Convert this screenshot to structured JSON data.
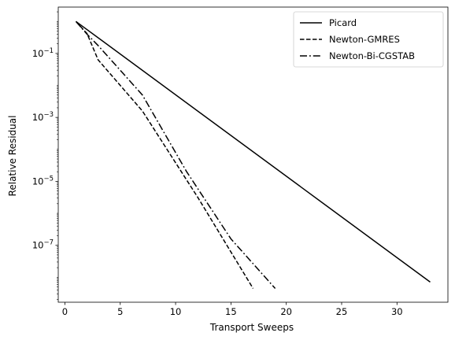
{
  "chart_data": {
    "type": "line",
    "title": "",
    "xlabel": "Transport Sweeps",
    "ylabel": "Relative Residual",
    "xlim": [
      -0.6,
      34.6
    ],
    "ylim_log10": [
      -8.78,
      0.45
    ],
    "y_scale": "log",
    "grid": false,
    "legend_position": "top-right",
    "x_ticks": [
      0,
      5,
      10,
      15,
      20,
      25,
      30
    ],
    "y_ticks": [
      {
        "exp": -1,
        "base": "10",
        "sup": "−1"
      },
      {
        "exp": -3,
        "base": "10",
        "sup": "−3"
      },
      {
        "exp": -5,
        "base": "10",
        "sup": "−5"
      },
      {
        "exp": -7,
        "base": "10",
        "sup": "−7"
      }
    ],
    "series": [
      {
        "name": "Picard",
        "style": "solid",
        "color": "#000000",
        "x": [
          1,
          33
        ],
        "log10_y": [
          0.0,
          -8.15
        ]
      },
      {
        "name": "Newton-GMRES",
        "style": "dashed",
        "color": "#000000",
        "x": [
          1,
          2,
          3,
          7,
          12,
          17
        ],
        "log10_y": [
          0.0,
          -0.38,
          -1.2,
          -2.8,
          -5.5,
          -8.35
        ]
      },
      {
        "name": "Newton-Bi-CGSTAB",
        "style": "dashdot",
        "color": "#000000",
        "x": [
          1,
          2,
          3,
          7,
          11,
          15,
          19
        ],
        "log10_y": [
          0.0,
          -0.4,
          -0.75,
          -2.3,
          -4.7,
          -6.8,
          -8.35
        ]
      }
    ]
  }
}
